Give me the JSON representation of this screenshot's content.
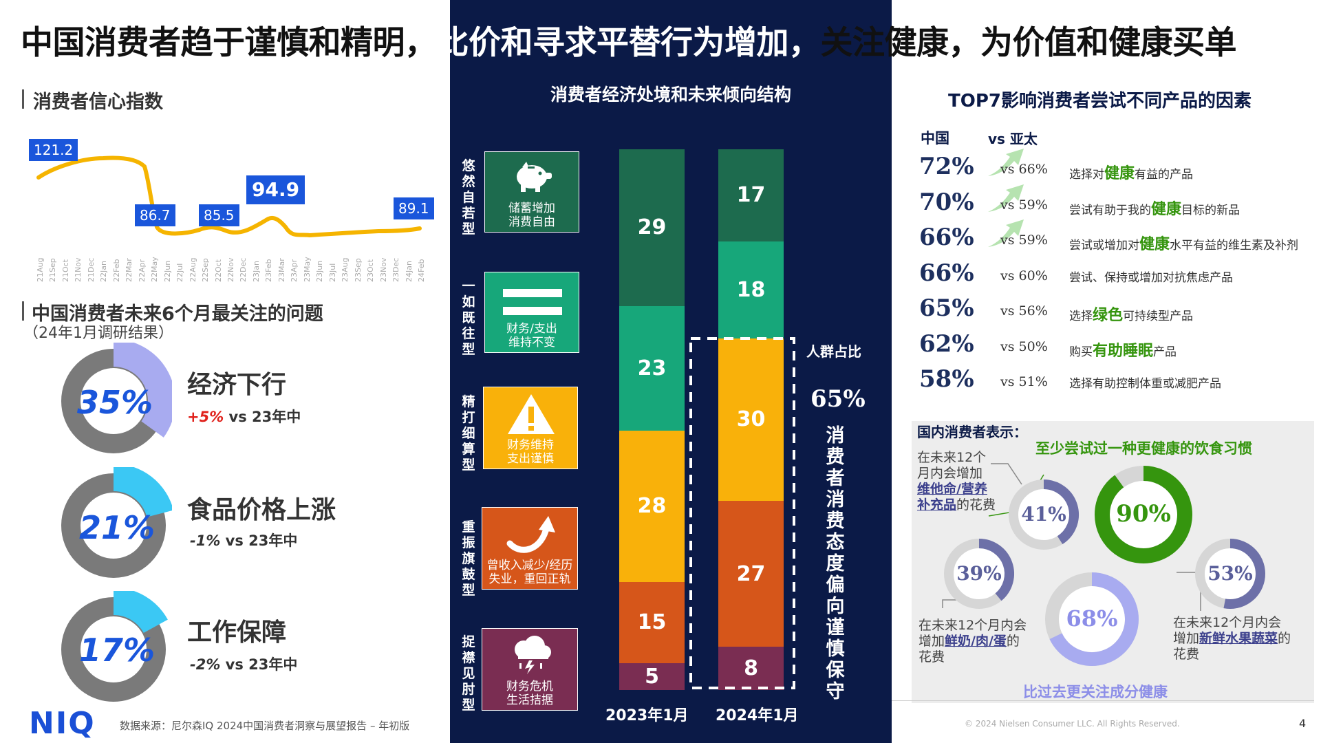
{
  "title": {
    "part1": "中国消费者趋于谨慎和精明，",
    "part2": "比价和寻求平替行为增加，",
    "part3": "关注健康，为价值和健康买单"
  },
  "confidence": {
    "section_title": "消费者信心指数",
    "labels": {
      "start": "121.2",
      "low1": "86.7",
      "low2": "85.5",
      "peak": "94.9",
      "end": "89.1"
    },
    "dates": [
      "21Aug",
      "21Sep",
      "21Oct",
      "21Nov",
      "21Dec",
      "22Jan",
      "22Feb",
      "22Mar",
      "22Apr",
      "22May",
      "22Jun",
      "22Jul",
      "22Aug",
      "22Sep",
      "22Oct",
      "22Nov",
      "22Dec",
      "23Jan",
      "23Feb",
      "23Mar",
      "23Apr",
      "23May",
      "23Jun",
      "23Jul",
      "23Aug",
      "23Sep",
      "23Oct",
      "23Nov",
      "23Dec",
      "24Jan",
      "24Feb"
    ],
    "line_color": "#f5b400"
  },
  "concerns": {
    "section_title": "中国消费者未来6个月最关注的问题",
    "subtitle": "（24年1月调研结果）",
    "items": [
      {
        "pct_label": "35%",
        "value": 0.35,
        "label": "经济下行",
        "delta": "+5%",
        "vs": " vs 23年中",
        "positive": true
      },
      {
        "pct_label": "21%",
        "value": 0.21,
        "label": "食品价格上涨",
        "delta": "-1%",
        "vs": " vs 23年中",
        "positive": false
      },
      {
        "pct_label": "17%",
        "value": 0.17,
        "label": "工作保障",
        "delta": "-2%",
        "vs": " vs 23年中",
        "positive": false
      }
    ]
  },
  "structure": {
    "title": "消费者经济处境和未来倾向结构",
    "categories": [
      {
        "vertical_label": "悠然自若型",
        "caption": "储蓄增加\n消费自由",
        "icon": "piggy-bank-icon",
        "color": "#1d6b4e"
      },
      {
        "vertical_label": "一如既往型",
        "caption": "财务/支出\n维持不变",
        "icon": "equals-icon",
        "color": "#17a77a"
      },
      {
        "vertical_label": "精打细算型",
        "caption": "财务维持\n支出谨慎",
        "icon": "warning-icon",
        "color": "#f9b10a"
      },
      {
        "vertical_label": "重振旗鼓型",
        "caption": "曾收入减少/经历\n失业，重回正轨",
        "icon": "arrow-rebound-icon",
        "color": "#d6561a"
      },
      {
        "vertical_label": "捉襟见肘型",
        "caption": "财务危机\n生活拮据",
        "icon": "storm-cloud-icon",
        "color": "#7a2d52"
      }
    ],
    "bars": [
      {
        "year": "2023年1月",
        "values": [
          29,
          23,
          28,
          15,
          5
        ]
      },
      {
        "year": "2024年1月",
        "values": [
          17,
          18,
          30,
          27,
          8
        ]
      }
    ],
    "share_label": "人群占比",
    "share_pct": "65%",
    "share_desc": "消费者消费态度偏向谨慎保守"
  },
  "factors": {
    "title": "TOP7影响消费者尝试不同产品的因素",
    "col_china": "中国",
    "col_apac": "vs 亚太",
    "rows": [
      {
        "pct": "72%",
        "vs": "vs 66%",
        "pre": "选择对",
        "hl": "健康",
        "post": "有益的产品",
        "arrow": true
      },
      {
        "pct": "70%",
        "vs": "vs 59%",
        "pre": "尝试有助于我的",
        "hl": "健康",
        "post": "目标的新品",
        "arrow": true
      },
      {
        "pct": "66%",
        "vs": "vs 59%",
        "pre": "尝试或增加对",
        "hl": "健康",
        "post": "水平有益的维生素及补剂",
        "arrow": true
      },
      {
        "pct": "66%",
        "vs": "vs 60%",
        "pre": "尝试、保持或增加对抗焦虑产品",
        "hl": "",
        "post": "",
        "arrow": false
      },
      {
        "pct": "65%",
        "vs": "vs 56%",
        "pre": "选择",
        "hl": "绿色",
        "post": "可持续型产品",
        "arrow": false
      },
      {
        "pct": "62%",
        "vs": "vs 50%",
        "pre": "购买",
        "hl": "有助睡眠",
        "post": "产品",
        "arrow": false
      },
      {
        "pct": "58%",
        "vs": "vs 51%",
        "pre": "选择有助控制体重或减肥产品",
        "hl": "",
        "post": "",
        "arrow": false
      }
    ]
  },
  "health": {
    "title": "国内消费者表示：",
    "green_label": "至少尝试过一种更健康的饮食习惯",
    "purple_label": "比过去更关注成分健康",
    "supp_text": {
      "l1": "在未来12个",
      "l2": "月内会增加",
      "l3": "维他命/营养",
      "l4": "补充品",
      "l5": "的花费"
    },
    "dairy_text": {
      "l1": "在未来12个月内会",
      "l2": "增加",
      "l3": "鲜奶/肉/蛋",
      "l4": "的",
      "l5": "花费"
    },
    "fresh_text": {
      "l1": "在未来12个月内会",
      "l2": "增加",
      "l3": "新鲜水果蔬菜",
      "l4": "的",
      "l5": "花费"
    },
    "rings": [
      {
        "id": "supplements",
        "pct": "41%",
        "value": 0.41,
        "color": "#6d70a8"
      },
      {
        "id": "healthy-diet",
        "pct": "90%",
        "value": 0.9,
        "color": "#35950e"
      },
      {
        "id": "dairy",
        "pct": "39%",
        "value": 0.39,
        "color": "#6d70a8"
      },
      {
        "id": "ingredients",
        "pct": "68%",
        "value": 0.68,
        "color": "#a8abf0"
      },
      {
        "id": "fresh",
        "pct": "53%",
        "value": 0.53,
        "color": "#6d70a8"
      }
    ]
  },
  "footer": {
    "logo": "NIQ",
    "source": "数据来源：尼尔森IQ 2024中国消费者洞察与展望报告 – 年初版",
    "copyright": "© 2024 Nielsen Consumer LLC. All Rights Reserved.",
    "page": "4"
  }
}
